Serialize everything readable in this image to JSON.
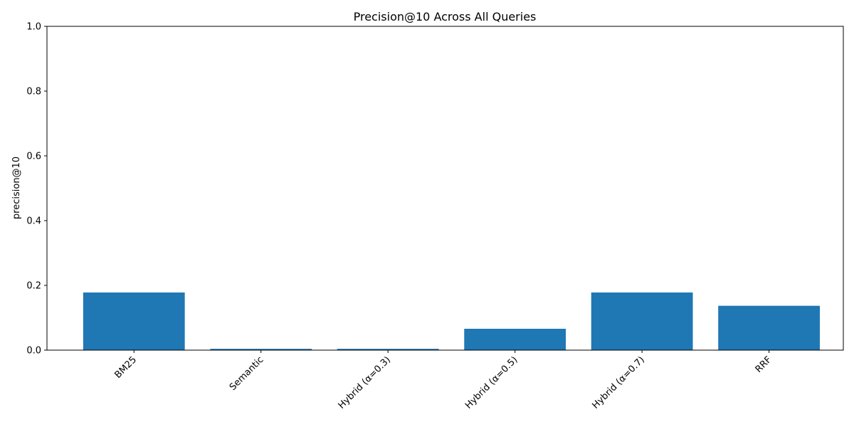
{
  "chart_data": {
    "type": "bar",
    "title": "Precision@10 Across All Queries",
    "xlabel": "",
    "ylabel": "precision@10",
    "categories": [
      "BM25",
      "Semantic",
      "Hybrid (α=0.3)",
      "Hybrid (α=0.5)",
      "Hybrid (α=0.7)",
      "RRF"
    ],
    "values": [
      0.178,
      0.004,
      0.004,
      0.066,
      0.178,
      0.137
    ],
    "ylim": [
      0,
      1.0
    ],
    "yticks": [
      "0.0",
      "0.2",
      "0.4",
      "0.6",
      "0.8",
      "1.0"
    ],
    "bar_color": "#1f77b4",
    "grid": false,
    "legend": "none"
  }
}
